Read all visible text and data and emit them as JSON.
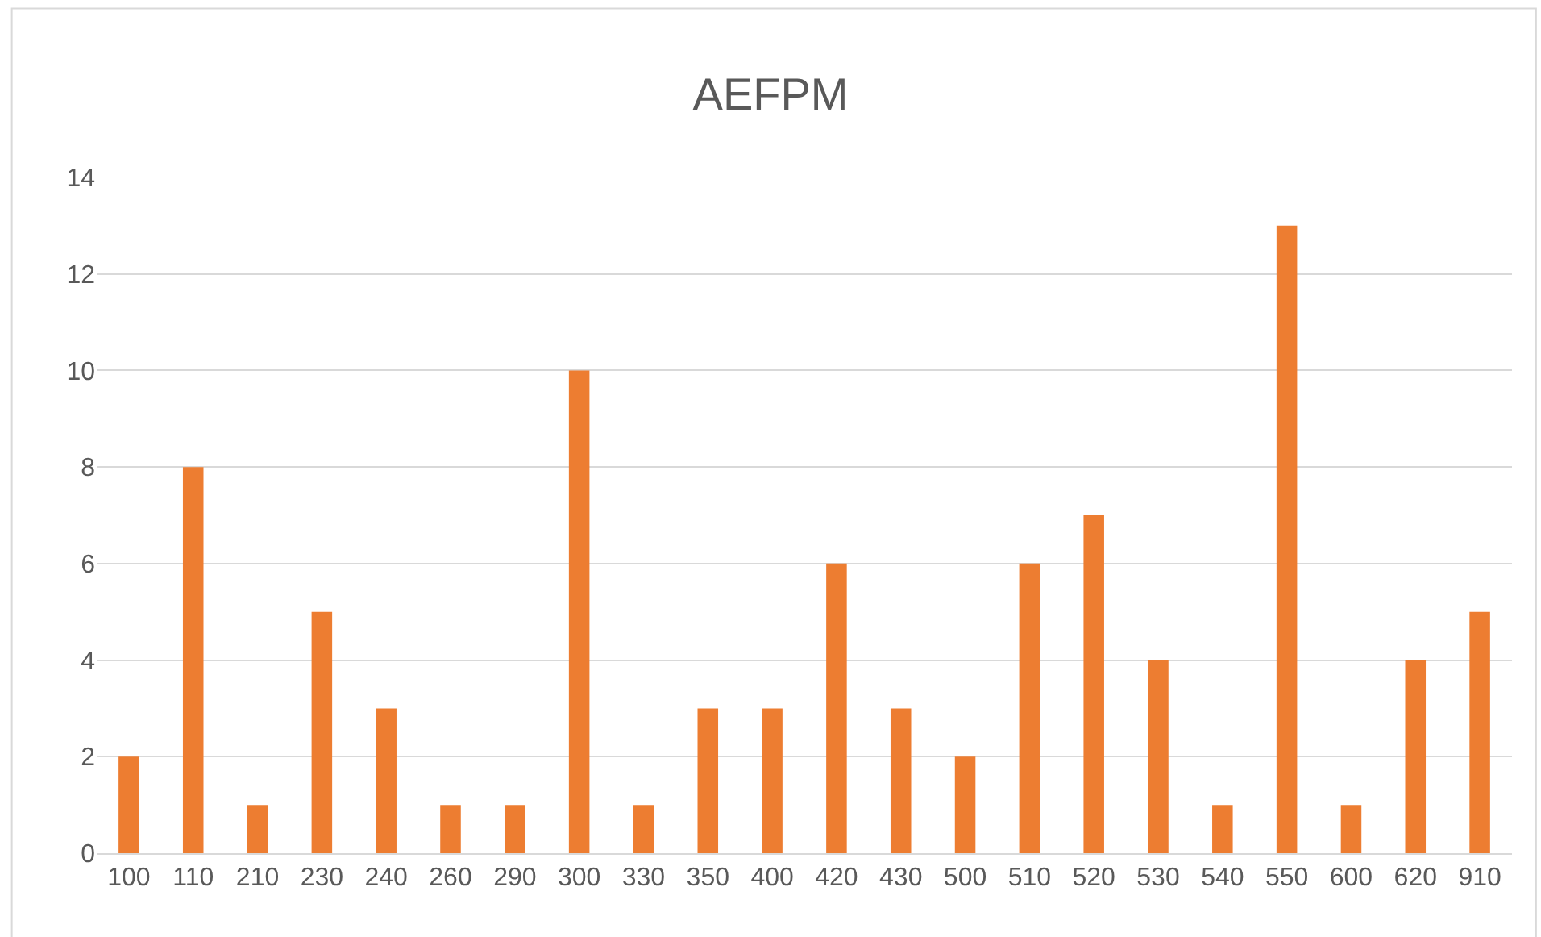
{
  "chart_data": {
    "type": "bar",
    "title": "AEFPM",
    "categories": [
      "100",
      "110",
      "210",
      "230",
      "240",
      "260",
      "290",
      "300",
      "330",
      "350",
      "400",
      "420",
      "430",
      "500",
      "510",
      "520",
      "530",
      "540",
      "550",
      "600",
      "620",
      "910"
    ],
    "values": [
      2,
      8,
      1,
      5,
      3,
      1,
      1,
      10,
      1,
      3,
      3,
      6,
      3,
      2,
      6,
      7,
      4,
      1,
      13,
      1,
      4,
      5
    ],
    "color": "#ed7d31",
    "ylim": [
      0,
      14
    ],
    "yticks": [
      0,
      2,
      4,
      6,
      8,
      10,
      12,
      14
    ],
    "grid": "y"
  }
}
